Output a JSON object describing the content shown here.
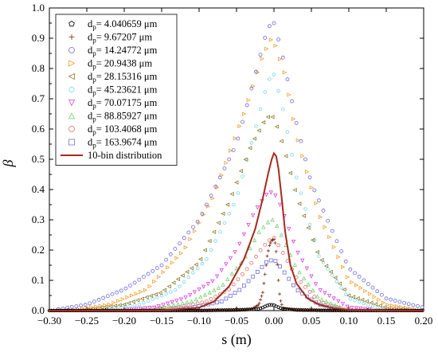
{
  "chart_data": {
    "type": "scatter",
    "xlabel": "s (m)",
    "ylabel": "β",
    "xlim": [
      -0.3,
      0.2
    ],
    "ylim": [
      0,
      1.0
    ],
    "x_ticks": [
      "-0.30",
      "-0.25",
      "-0.20",
      "-0.15",
      "-0.10",
      "-0.05",
      "0.00",
      "0.05",
      "0.10",
      "0.15",
      "0.20"
    ],
    "y_ticks": [
      "0.0",
      "0.1",
      "0.2",
      "0.3",
      "0.4",
      "0.5",
      "0.6",
      "0.7",
      "0.8",
      "0.9",
      "1.0"
    ],
    "legend_position": "top-left",
    "series": [
      {
        "name_prefix": "d",
        "name_sub": "p",
        "name_value": "= 4.040659 μm",
        "marker": "pentagon",
        "color": "#000000",
        "points": [
          [
            -0.3,
            0
          ],
          [
            -0.1,
            0
          ],
          [
            -0.08,
            0.001
          ],
          [
            -0.06,
            0.002
          ],
          [
            -0.04,
            0.003
          ],
          [
            -0.02,
            0.006
          ],
          [
            -0.015,
            0.01
          ],
          [
            -0.01,
            0.016
          ],
          [
            -0.005,
            0.02
          ],
          [
            0.0,
            0.018
          ],
          [
            0.005,
            0.012
          ],
          [
            0.01,
            0.007
          ],
          [
            0.02,
            0.004
          ],
          [
            0.04,
            0.002
          ],
          [
            0.06,
            0.001
          ],
          [
            0.08,
            0
          ],
          [
            0.2,
            0
          ]
        ]
      },
      {
        "name_prefix": "d",
        "name_sub": "p",
        "name_value": "= 9.67207  μm",
        "marker": "plus",
        "color": "#7b2b18",
        "points": [
          [
            -0.3,
            0
          ],
          [
            -0.05,
            0.001
          ],
          [
            -0.03,
            0.004
          ],
          [
            -0.02,
            0.02
          ],
          [
            -0.015,
            0.06
          ],
          [
            -0.012,
            0.12
          ],
          [
            -0.009,
            0.18
          ],
          [
            -0.006,
            0.215
          ],
          [
            -0.003,
            0.232
          ],
          [
            0.0,
            0.235
          ],
          [
            0.002,
            0.22
          ],
          [
            0.004,
            0.17
          ],
          [
            0.006,
            0.1
          ],
          [
            0.008,
            0.04
          ],
          [
            0.012,
            0.008
          ],
          [
            0.03,
            0.001
          ],
          [
            0.2,
            0
          ]
        ]
      },
      {
        "name_prefix": "d",
        "name_sub": "p",
        "name_value": "= 14.24772 μm",
        "marker": "circle",
        "color": "#6a6ade",
        "points": [
          [
            -0.3,
            0.0
          ],
          [
            -0.25,
            0.02
          ],
          [
            -0.2,
            0.07
          ],
          [
            -0.15,
            0.15
          ],
          [
            -0.1,
            0.3
          ],
          [
            -0.05,
            0.55
          ],
          [
            -0.025,
            0.78
          ],
          [
            -0.01,
            0.92
          ],
          [
            -0.003,
            0.955
          ],
          [
            0.0,
            0.95
          ],
          [
            0.01,
            0.86
          ],
          [
            0.03,
            0.62
          ],
          [
            0.05,
            0.42
          ],
          [
            0.1,
            0.14
          ],
          [
            0.15,
            0.04
          ],
          [
            0.2,
            0.01
          ]
        ]
      },
      {
        "name_prefix": "d",
        "name_sub": "p",
        "name_value": "= 20.9438  μm",
        "marker": "triangle-right",
        "color": "#f0a030",
        "points": [
          [
            -0.28,
            0.0
          ],
          [
            -0.22,
            0.02
          ],
          [
            -0.17,
            0.07
          ],
          [
            -0.12,
            0.2
          ],
          [
            -0.08,
            0.38
          ],
          [
            -0.04,
            0.65
          ],
          [
            -0.015,
            0.84
          ],
          [
            -0.003,
            0.9
          ],
          [
            0.0,
            0.89
          ],
          [
            0.015,
            0.78
          ],
          [
            0.03,
            0.58
          ],
          [
            0.06,
            0.32
          ],
          [
            0.1,
            0.1
          ],
          [
            0.15,
            0.02
          ],
          [
            0.2,
            0.0
          ]
        ]
      },
      {
        "name_prefix": "d",
        "name_sub": "p",
        "name_value": "= 28.15316 μm",
        "marker": "triangle-left",
        "color": "#8c7a2a",
        "points": [
          [
            -0.26,
            0.0
          ],
          [
            -0.2,
            0.02
          ],
          [
            -0.15,
            0.06
          ],
          [
            -0.1,
            0.16
          ],
          [
            -0.06,
            0.36
          ],
          [
            -0.03,
            0.55
          ],
          [
            -0.01,
            0.64
          ],
          [
            0.0,
            0.64
          ],
          [
            0.015,
            0.52
          ],
          [
            0.03,
            0.38
          ],
          [
            0.06,
            0.18
          ],
          [
            0.1,
            0.05
          ],
          [
            0.15,
            0.01
          ],
          [
            0.2,
            0.0
          ]
        ]
      },
      {
        "name_prefix": "d",
        "name_sub": "p",
        "name_value": "= 45.23621 μm",
        "marker": "hexagon",
        "color": "#7fdcec",
        "points": [
          [
            -0.24,
            0.0
          ],
          [
            -0.18,
            0.02
          ],
          [
            -0.13,
            0.07
          ],
          [
            -0.09,
            0.17
          ],
          [
            -0.05,
            0.37
          ],
          [
            -0.025,
            0.6
          ],
          [
            -0.008,
            0.76
          ],
          [
            0.0,
            0.78
          ],
          [
            0.01,
            0.69
          ],
          [
            0.03,
            0.44
          ],
          [
            0.06,
            0.18
          ],
          [
            0.1,
            0.04
          ],
          [
            0.15,
            0.0
          ]
        ]
      },
      {
        "name_prefix": "d",
        "name_sub": "p",
        "name_value": "= 70.07175 μm",
        "marker": "triangle-down",
        "color": "#e040e0",
        "points": [
          [
            -0.22,
            0.0
          ],
          [
            -0.16,
            0.01
          ],
          [
            -0.12,
            0.04
          ],
          [
            -0.08,
            0.1
          ],
          [
            -0.05,
            0.2
          ],
          [
            -0.025,
            0.33
          ],
          [
            -0.008,
            0.39
          ],
          [
            0.0,
            0.39
          ],
          [
            0.01,
            0.34
          ],
          [
            0.03,
            0.2
          ],
          [
            0.06,
            0.07
          ],
          [
            0.1,
            0.01
          ],
          [
            0.15,
            0.0
          ]
        ]
      },
      {
        "name_prefix": "d",
        "name_sub": "p",
        "name_value": "= 88.85927 μm",
        "marker": "triangle-up",
        "color": "#70d070",
        "points": [
          [
            -0.2,
            0.0
          ],
          [
            -0.15,
            0.01
          ],
          [
            -0.11,
            0.03
          ],
          [
            -0.07,
            0.08
          ],
          [
            -0.04,
            0.17
          ],
          [
            -0.02,
            0.26
          ],
          [
            -0.005,
            0.3
          ],
          [
            0.0,
            0.3
          ],
          [
            0.01,
            0.25
          ],
          [
            0.03,
            0.14
          ],
          [
            0.06,
            0.04
          ],
          [
            0.1,
            0.0
          ]
        ]
      },
      {
        "name_prefix": "d",
        "name_sub": "p",
        "name_value": "= 103.4068 μm",
        "marker": "circle",
        "color": "#e07060",
        "points": [
          [
            -0.18,
            0.0
          ],
          [
            -0.13,
            0.01
          ],
          [
            -0.09,
            0.03
          ],
          [
            -0.06,
            0.07
          ],
          [
            -0.035,
            0.14
          ],
          [
            -0.015,
            0.21
          ],
          [
            -0.003,
            0.24
          ],
          [
            0.0,
            0.24
          ],
          [
            0.01,
            0.2
          ],
          [
            0.03,
            0.11
          ],
          [
            0.06,
            0.03
          ],
          [
            0.1,
            0.0
          ]
        ]
      },
      {
        "name_prefix": "d",
        "name_sub": "p",
        "name_value": "= 163.9674 μm",
        "marker": "square",
        "color": "#7070d8",
        "points": [
          [
            -0.16,
            0.0
          ],
          [
            -0.11,
            0.01
          ],
          [
            -0.07,
            0.03
          ],
          [
            -0.045,
            0.07
          ],
          [
            -0.025,
            0.12
          ],
          [
            -0.01,
            0.16
          ],
          [
            0.0,
            0.17
          ],
          [
            0.01,
            0.14
          ],
          [
            0.03,
            0.07
          ],
          [
            0.06,
            0.02
          ],
          [
            0.1,
            0.0
          ]
        ]
      }
    ],
    "distribution": {
      "name": "10-bin distribution",
      "color": "#a52a1e",
      "points": [
        [
          -0.3,
          0
        ],
        [
          -0.15,
          0.001
        ],
        [
          -0.1,
          0.01
        ],
        [
          -0.08,
          0.03
        ],
        [
          -0.06,
          0.08
        ],
        [
          -0.04,
          0.17
        ],
        [
          -0.025,
          0.27
        ],
        [
          -0.015,
          0.37
        ],
        [
          -0.008,
          0.45
        ],
        [
          -0.003,
          0.5
        ],
        [
          0.0,
          0.52
        ],
        [
          0.003,
          0.51
        ],
        [
          0.006,
          0.47
        ],
        [
          0.01,
          0.38
        ],
        [
          0.015,
          0.26
        ],
        [
          0.022,
          0.15
        ],
        [
          0.03,
          0.09
        ],
        [
          0.045,
          0.04
        ],
        [
          0.06,
          0.02
        ],
        [
          0.08,
          0.008
        ],
        [
          0.1,
          0.003
        ],
        [
          0.15,
          0.001
        ],
        [
          0.2,
          0
        ]
      ]
    }
  }
}
